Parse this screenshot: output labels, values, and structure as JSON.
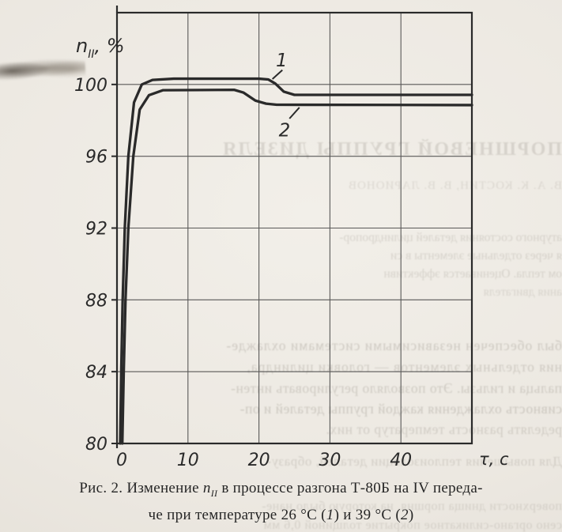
{
  "page": {
    "background": "#ece8e1",
    "ink": "#2a2a2a",
    "grid_color": "#3f3f3f"
  },
  "chart_data": {
    "type": "line",
    "title": "",
    "ylabel_parts": {
      "symbol": "n",
      "subscript": "II",
      "unit": ", %"
    },
    "xlabel": "τ, с",
    "xlim": [
      0,
      50
    ],
    "ylim": [
      80,
      104
    ],
    "x_ticks": [
      0,
      10,
      20,
      30,
      40
    ],
    "y_ticks": [
      80,
      84,
      88,
      92,
      96,
      100
    ],
    "grid": true,
    "legend_position": "inline-labels",
    "series": [
      {
        "name": "1",
        "temperature": "26 °С",
        "points": [
          [
            0.45,
            80
          ],
          [
            0.6,
            84
          ],
          [
            0.8,
            88
          ],
          [
            1.1,
            92
          ],
          [
            1.6,
            96
          ],
          [
            2.4,
            99.0
          ],
          [
            3.5,
            100.0
          ],
          [
            5,
            100.25
          ],
          [
            8,
            100.32
          ],
          [
            20,
            100.32
          ],
          [
            21.3,
            100.28
          ],
          [
            22.3,
            100.05
          ],
          [
            23.5,
            99.6
          ],
          [
            25,
            99.42
          ],
          [
            50,
            99.42
          ]
        ]
      },
      {
        "name": "2",
        "temperature": "39 °С",
        "points": [
          [
            0.75,
            80
          ],
          [
            0.95,
            84
          ],
          [
            1.2,
            88
          ],
          [
            1.6,
            92
          ],
          [
            2.3,
            96
          ],
          [
            3.2,
            98.6
          ],
          [
            4.5,
            99.4
          ],
          [
            6.5,
            99.68
          ],
          [
            16.5,
            99.7
          ],
          [
            17.8,
            99.55
          ],
          [
            19.5,
            99.1
          ],
          [
            21,
            98.93
          ],
          [
            22.5,
            98.87
          ],
          [
            50,
            98.85
          ]
        ]
      }
    ],
    "annotations": [
      {
        "label": "1",
        "t": 23.2,
        "v": 101.35,
        "leader_from": [
          23.3,
          100.8
        ],
        "leader_to": [
          21.9,
          100.3
        ]
      },
      {
        "label": "2",
        "t": 23.6,
        "v": 97.45,
        "leader_from": [
          24.3,
          98.1
        ],
        "leader_to": [
          25.7,
          98.72
        ]
      }
    ]
  },
  "caption": {
    "prefix": "Рис. 2. Изменение ",
    "symbol": "n",
    "symbol_sub": "II",
    "middle": " в процессе разгона Т-80Б на IV переда-",
    "line2_a": "че при температуре 26 °С (",
    "curve1_ref": "1",
    "line2_b": ") и 39 °С (",
    "curve2_ref": "2",
    "line2_c": ")"
  },
  "bleed_through": {
    "note": "mirrored show-through text from reverse page",
    "lines": [
      {
        "text": "ПОРШНЕВОЙ ГРУППЫ ДИЗЕЛЯ"
      },
      {
        "text": "В. А. К. КОСТИН, В. В. ЛАРИОНОВ"
      },
      {
        "text": "атурного состояния деталей цилиндропор-"
      },
      {
        "text": "я через отдельные элементы в си"
      },
      {
        "text": "ом тепла. Оценивается эффективн"
      },
      {
        "text": "ания двигателя"
      },
      {
        "text": "был обеспечен независимыми системами охлажде-"
      },
      {
        "text": "ния отдельных элементов — головки цилиндра,"
      },
      {
        "text": "пальца и гильзы. Это позволяло регулировать интен-"
      },
      {
        "text": "сивность охлаждения каждой группы деталей и оп-"
      },
      {
        "text": "ределять разность температур от них."
      },
      {
        "text": "Для повышения теплоизоляции деталей, образу-"
      },
      {
        "text": "поверхности днища поршня, на которую было нане-"
      },
      {
        "text": "сено органо-силикатное покрытие толщиной 0,6 мм"
      }
    ]
  }
}
